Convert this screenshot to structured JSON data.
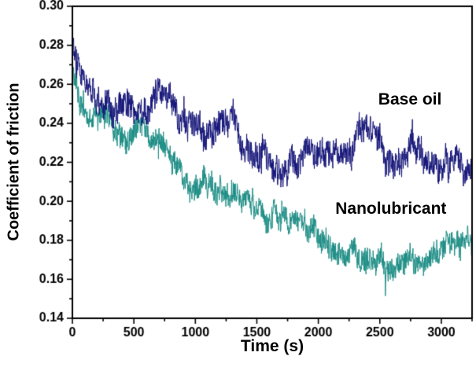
{
  "chart_data": {
    "type": "line",
    "title": "",
    "xlabel": "Time (s)",
    "ylabel": "Coefficient of friction",
    "xlim": [
      0,
      3250
    ],
    "ylim": [
      0.14,
      0.3
    ],
    "x_ticks": [
      0,
      500,
      1000,
      1500,
      2000,
      2500,
      3000
    ],
    "y_ticks": [
      0.14,
      0.16,
      0.18,
      0.2,
      0.22,
      0.24,
      0.26,
      0.28,
      0.3
    ],
    "grid": false,
    "legend_position": "none",
    "annotations": [
      {
        "text": "Base oil",
        "x": 2745,
        "y": 0.252,
        "color": "#000000"
      },
      {
        "text": "Nanolubricant",
        "x": 2590,
        "y": 0.196,
        "color": "#000000"
      }
    ],
    "series": [
      {
        "name": "Nanolubricant",
        "color": "#1e8e86",
        "noise": 0.0065,
        "x": [
          0,
          60,
          100,
          200,
          300,
          400,
          500,
          600,
          700,
          800,
          900,
          1000,
          1100,
          1200,
          1300,
          1400,
          1500,
          1600,
          1700,
          1800,
          1900,
          2000,
          2100,
          2200,
          2300,
          2400,
          2500,
          2600,
          2700,
          2800,
          2900,
          3000,
          3100,
          3200,
          3250
        ],
        "y": [
          0.268,
          0.257,
          0.252,
          0.246,
          0.241,
          0.236,
          0.233,
          0.231,
          0.226,
          0.222,
          0.216,
          0.21,
          0.205,
          0.201,
          0.198,
          0.196,
          0.193,
          0.19,
          0.188,
          0.186,
          0.185,
          0.183,
          0.18,
          0.178,
          0.178,
          0.175,
          0.172,
          0.169,
          0.171,
          0.173,
          0.175,
          0.175,
          0.177,
          0.175,
          0.172
        ]
      },
      {
        "name": "Base oil",
        "color": "#16167a",
        "noise": 0.0075,
        "x": [
          0,
          60,
          100,
          200,
          300,
          400,
          500,
          600,
          700,
          800,
          900,
          1000,
          1100,
          1200,
          1300,
          1400,
          1500,
          1600,
          1700,
          1800,
          1900,
          2000,
          2100,
          2200,
          2300,
          2400,
          2500,
          2600,
          2700,
          2800,
          2900,
          3000,
          3100,
          3200,
          3250
        ],
        "y": [
          0.285,
          0.272,
          0.266,
          0.258,
          0.252,
          0.25,
          0.253,
          0.252,
          0.256,
          0.253,
          0.246,
          0.242,
          0.24,
          0.242,
          0.239,
          0.234,
          0.228,
          0.226,
          0.222,
          0.214,
          0.224,
          0.228,
          0.231,
          0.232,
          0.23,
          0.234,
          0.228,
          0.226,
          0.228,
          0.23,
          0.226,
          0.222,
          0.226,
          0.221,
          0.224
        ]
      }
    ]
  }
}
